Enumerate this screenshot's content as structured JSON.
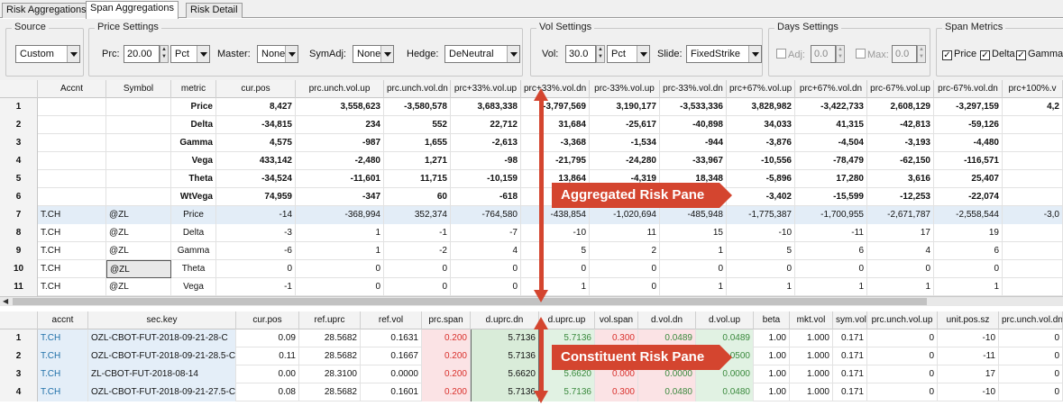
{
  "tabs": [
    "Risk Aggregations",
    "Span Aggregations",
    "Risk Detail"
  ],
  "toolbar": {
    "source": {
      "title": "Source",
      "value": "Custom"
    },
    "price": {
      "title": "Price Settings",
      "prc_label": "Prc:",
      "prc_value": "20.00",
      "unit": "Pct",
      "master_label": "Master:",
      "master_value": "None",
      "symadj_label": "SymAdj:",
      "symadj_value": "None",
      "hedge_label": "Hedge:",
      "hedge_value": "DeNeutral"
    },
    "vol": {
      "title": "Vol Settings",
      "vol_label": "Vol:",
      "vol_value": "30.0",
      "unit": "Pct",
      "slide_label": "Slide:",
      "slide_value": "FixedStrike"
    },
    "days": {
      "title": "Days Settings",
      "adj_label": "Adj:",
      "adj_value": "0.0",
      "max_label": "Max:",
      "max_value": "0.0"
    },
    "span": {
      "title": "Span Metrics",
      "price": "Price",
      "delta": "Delta",
      "gamma": "Gamma"
    }
  },
  "agg": {
    "headers": [
      "",
      "Accnt",
      "Symbol",
      "metric",
      "cur.pos",
      "prc.unch.vol.up",
      "prc.unch.vol.dn",
      "prc+33%.vol.up",
      "prc+33%.vol.dn",
      "prc-33%.vol.up",
      "prc-33%.vol.dn",
      "prc+67%.vol.up",
      "prc+67%.vol.dn",
      "prc-67%.vol.up",
      "prc-67%.vol.dn",
      "prc+100%.v"
    ],
    "rows": [
      [
        "1",
        "",
        "",
        "Price",
        "8,427",
        "3,558,623",
        "-3,580,578",
        "3,683,338",
        "-3,797,569",
        "3,190,177",
        "-3,533,336",
        "3,828,982",
        "-3,422,733",
        "2,608,129",
        "-3,297,159",
        "4,2"
      ],
      [
        "2",
        "",
        "",
        "Delta",
        "-34,815",
        "234",
        "552",
        "22,712",
        "31,684",
        "-25,617",
        "-40,898",
        "34,033",
        "41,315",
        "-42,813",
        "-59,126",
        ""
      ],
      [
        "3",
        "",
        "",
        "Gamma",
        "4,575",
        "-987",
        "1,655",
        "-2,613",
        "-3,368",
        "-1,534",
        "-944",
        "-3,876",
        "-4,504",
        "-3,193",
        "-4,480",
        ""
      ],
      [
        "4",
        "",
        "",
        "Vega",
        "433,142",
        "-2,480",
        "1,271",
        "-98",
        "-21,795",
        "-24,280",
        "-33,967",
        "-10,556",
        "-78,479",
        "-62,150",
        "-116,571",
        ""
      ],
      [
        "5",
        "",
        "",
        "Theta",
        "-34,524",
        "-11,601",
        "11,715",
        "-10,159",
        "13,864",
        "-4,319",
        "18,348",
        "-5,896",
        "17,280",
        "3,616",
        "25,407",
        ""
      ],
      [
        "6",
        "",
        "",
        "WtVega",
        "74,959",
        "-347",
        "60",
        "-618",
        "",
        "",
        "0",
        "-3,402",
        "-15,599",
        "-12,253",
        "-22,074",
        ""
      ],
      [
        "7",
        "T.CH",
        "@ZL",
        "Price",
        "-14",
        "-368,994",
        "352,374",
        "-764,580",
        "-438,854",
        "-1,020,694",
        "-485,948",
        "-1,775,387",
        "-1,700,955",
        "-2,671,787",
        "-2,558,544",
        "-3,0"
      ],
      [
        "8",
        "T.CH",
        "@ZL",
        "Delta",
        "-3",
        "1",
        "-1",
        "-7",
        "-10",
        "11",
        "15",
        "-10",
        "-11",
        "17",
        "19",
        ""
      ],
      [
        "9",
        "T.CH",
        "@ZL",
        "Gamma",
        "-6",
        "1",
        "-2",
        "4",
        "5",
        "2",
        "1",
        "5",
        "6",
        "4",
        "6",
        ""
      ],
      [
        "10",
        "T.CH",
        "@ZL",
        "Theta",
        "0",
        "0",
        "0",
        "0",
        "0",
        "0",
        "0",
        "0",
        "0",
        "0",
        "0",
        ""
      ],
      [
        "11",
        "T.CH",
        "@ZL",
        "Vega",
        "-1",
        "0",
        "0",
        "0",
        "1",
        "0",
        "1",
        "1",
        "1",
        "1",
        "1",
        ""
      ]
    ]
  },
  "con": {
    "headers": [
      "",
      "accnt",
      "sec.key",
      "cur.pos",
      "ref.uprc",
      "ref.vol",
      "prc.span",
      "d.uprc.dn",
      "d.uprc.up",
      "vol.span",
      "d.vol.dn",
      "d.vol.up",
      "beta",
      "mkt.vol",
      "sym.vol",
      "prc.unch.vol.up",
      "unit.pos.sz",
      "prc.unch.vol.dn"
    ],
    "rows": [
      [
        "1",
        "T.CH",
        "OZL-CBOT-FUT-2018-09-21-28-C",
        "0.09",
        "28.5682",
        "0.1631",
        "0.200",
        "5.7136",
        "5.7136",
        "0.300",
        "0.0489",
        "0.0489",
        "1.00",
        "1.000",
        "0.171",
        "0",
        "-10",
        "0"
      ],
      [
        "2",
        "T.CH",
        "OZL-CBOT-FUT-2018-09-21-28.5-C",
        "0.11",
        "28.5682",
        "0.1667",
        "0.200",
        "5.7136",
        "5.7136",
        "0.300",
        "0.0500",
        "0.0500",
        "1.00",
        "1.000",
        "0.171",
        "0",
        "-11",
        "0"
      ],
      [
        "3",
        "T.CH",
        "ZL-CBOT-FUT-2018-08-14",
        "0.00",
        "28.3100",
        "0.0000",
        "0.200",
        "5.6620",
        "5.6620",
        "0.000",
        "0.0000",
        "0.0000",
        "1.00",
        "1.000",
        "0.171",
        "0",
        "17",
        "0"
      ],
      [
        "4",
        "T.CH",
        "OZL-CBOT-FUT-2018-09-21-27.5-C",
        "0.08",
        "28.5682",
        "0.1601",
        "0.200",
        "5.7136",
        "5.7136",
        "0.300",
        "0.0480",
        "0.0480",
        "1.00",
        "1.000",
        "0.171",
        "0",
        "-10",
        "0"
      ]
    ]
  },
  "callouts": {
    "agg": "Aggregated Risk Pane",
    "con": "Constituent Risk Pane"
  },
  "colors": {
    "accent": "#d4452f"
  }
}
